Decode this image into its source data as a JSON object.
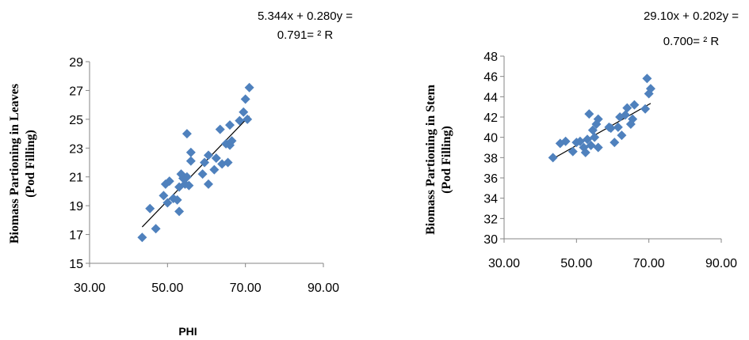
{
  "chart_data": [
    {
      "type": "scatter",
      "equation_line1": "5.344x + 0.280y =",
      "equation_line2": "0.791= ² R",
      "ylabel_line1": "Biomass Partioning in Leaves",
      "ylabel_line2": "(Pod Filling)",
      "xlabel": "PHI",
      "xlim": [
        30,
        90
      ],
      "ylim": [
        15,
        29
      ],
      "xticks": [
        "30.00",
        "50.00",
        "70.00",
        "90.00"
      ],
      "yticks": [
        "15",
        "17",
        "19",
        "21",
        "23",
        "25",
        "27",
        "29"
      ],
      "point_color": "#4f81bd",
      "trendline": {
        "slope": 0.28,
        "intercept": 5.344
      },
      "points": [
        {
          "x": 43.5,
          "y": 16.8
        },
        {
          "x": 45.5,
          "y": 18.8
        },
        {
          "x": 47.0,
          "y": 17.4
        },
        {
          "x": 49.0,
          "y": 19.7
        },
        {
          "x": 49.5,
          "y": 20.5
        },
        {
          "x": 50.0,
          "y": 19.2
        },
        {
          "x": 50.5,
          "y": 20.7
        },
        {
          "x": 51.5,
          "y": 19.5
        },
        {
          "x": 52.5,
          "y": 19.4
        },
        {
          "x": 53.0,
          "y": 20.3
        },
        {
          "x": 53.0,
          "y": 18.6
        },
        {
          "x": 53.5,
          "y": 21.2
        },
        {
          "x": 54.0,
          "y": 20.9
        },
        {
          "x": 54.5,
          "y": 20.5
        },
        {
          "x": 55.0,
          "y": 21.0
        },
        {
          "x": 55.0,
          "y": 24.0
        },
        {
          "x": 55.5,
          "y": 20.4
        },
        {
          "x": 56.0,
          "y": 22.1
        },
        {
          "x": 56.0,
          "y": 22.7
        },
        {
          "x": 59.0,
          "y": 21.2
        },
        {
          "x": 59.5,
          "y": 22.0
        },
        {
          "x": 60.5,
          "y": 22.5
        },
        {
          "x": 60.5,
          "y": 20.5
        },
        {
          "x": 62.0,
          "y": 21.5
        },
        {
          "x": 62.5,
          "y": 22.3
        },
        {
          "x": 63.5,
          "y": 24.3
        },
        {
          "x": 64.0,
          "y": 21.9
        },
        {
          "x": 65.0,
          "y": 23.3
        },
        {
          "x": 65.5,
          "y": 22.0
        },
        {
          "x": 66.0,
          "y": 24.6
        },
        {
          "x": 66.0,
          "y": 23.2
        },
        {
          "x": 66.5,
          "y": 23.5
        },
        {
          "x": 68.5,
          "y": 24.9
        },
        {
          "x": 69.5,
          "y": 25.5
        },
        {
          "x": 70.0,
          "y": 26.4
        },
        {
          "x": 70.5,
          "y": 25.0
        },
        {
          "x": 71.0,
          "y": 27.2
        }
      ]
    },
    {
      "type": "scatter",
      "equation_line1": "29.10x + 0.202y =",
      "equation_line2": "0.700= ² R",
      "ylabel_line1": "Biomass Partioning in Stem",
      "ylabel_line2": "(Pod Filling)",
      "xlim": [
        30,
        90
      ],
      "ylim": [
        30,
        48
      ],
      "xticks": [
        "30.00",
        "50.00",
        "70.00",
        "90.00"
      ],
      "yticks": [
        "30",
        "32",
        "34",
        "36",
        "38",
        "40",
        "42",
        "44",
        "46",
        "48"
      ],
      "point_color": "#4f81bd",
      "trendline": {
        "slope": 0.202,
        "intercept": 29.1
      },
      "points": [
        {
          "x": 43.5,
          "y": 38.0
        },
        {
          "x": 45.5,
          "y": 39.4
        },
        {
          "x": 47.0,
          "y": 39.6
        },
        {
          "x": 49.0,
          "y": 38.6
        },
        {
          "x": 50.0,
          "y": 39.5
        },
        {
          "x": 51.0,
          "y": 39.6
        },
        {
          "x": 52.0,
          "y": 39.0
        },
        {
          "x": 52.5,
          "y": 38.5
        },
        {
          "x": 53.0,
          "y": 39.8
        },
        {
          "x": 53.5,
          "y": 42.3
        },
        {
          "x": 54.0,
          "y": 39.2
        },
        {
          "x": 54.5,
          "y": 40.7
        },
        {
          "x": 55.0,
          "y": 40.0
        },
        {
          "x": 55.5,
          "y": 41.3
        },
        {
          "x": 56.0,
          "y": 39.0
        },
        {
          "x": 56.0,
          "y": 41.8
        },
        {
          "x": 59.0,
          "y": 41.0
        },
        {
          "x": 59.5,
          "y": 40.9
        },
        {
          "x": 60.5,
          "y": 39.5
        },
        {
          "x": 61.5,
          "y": 41.0
        },
        {
          "x": 62.0,
          "y": 42.0
        },
        {
          "x": 62.5,
          "y": 40.2
        },
        {
          "x": 63.5,
          "y": 42.2
        },
        {
          "x": 64.0,
          "y": 42.9
        },
        {
          "x": 65.0,
          "y": 41.3
        },
        {
          "x": 65.5,
          "y": 41.8
        },
        {
          "x": 66.0,
          "y": 43.2
        },
        {
          "x": 69.0,
          "y": 42.8
        },
        {
          "x": 69.5,
          "y": 45.8
        },
        {
          "x": 70.0,
          "y": 44.3
        },
        {
          "x": 70.5,
          "y": 44.8
        }
      ]
    }
  ]
}
